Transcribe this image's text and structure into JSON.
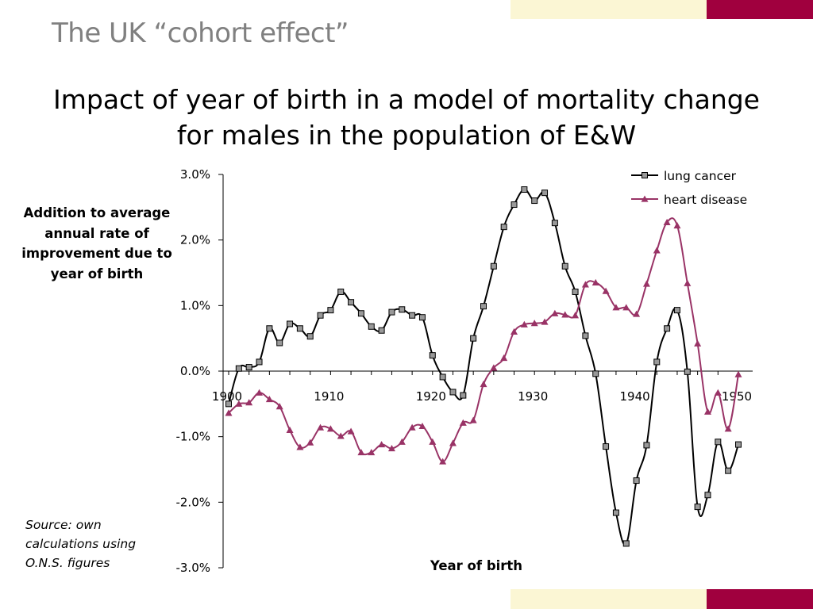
{
  "slide": {
    "title": "The UK “cohort effect”",
    "heading_line1": "Impact of year of birth in a model of mortality change",
    "heading_line2": "for males in the population of E&W",
    "source_note": "Source: own calculations using O.N.S. figures"
  },
  "colors": {
    "accent_cream": "#fbf6d4",
    "accent_maroon": "#a0003e",
    "lung_cancer": "#000000",
    "heart_disease": "#993366"
  },
  "chart_data": {
    "type": "line",
    "title": "Impact of year of birth in a model of mortality change for males in the population of E&W",
    "xlabel": "Year of birth",
    "ylabel": "Addition to average annual rate of improvement due to year of birth",
    "xlim": [
      1900,
      1950
    ],
    "ylim": [
      -3.0,
      3.0
    ],
    "x_ticks": [
      "1900",
      "1910",
      "1920",
      "1930",
      "1940",
      "1950"
    ],
    "y_ticks": [
      "3.0%",
      "2.0%",
      "1.0%",
      "0.0%",
      "-1.0%",
      "-2.0%",
      "-3.0%"
    ],
    "grid": false,
    "legend_position": "top-right",
    "x": [
      1900,
      1901,
      1902,
      1903,
      1904,
      1905,
      1906,
      1907,
      1908,
      1909,
      1910,
      1911,
      1912,
      1913,
      1914,
      1915,
      1916,
      1917,
      1918,
      1919,
      1920,
      1921,
      1922,
      1923,
      1924,
      1925,
      1926,
      1927,
      1928,
      1929,
      1930,
      1931,
      1932,
      1933,
      1934,
      1935,
      1936,
      1937,
      1938,
      1939,
      1940,
      1941,
      1942,
      1943,
      1944,
      1945,
      1946,
      1947,
      1948,
      1949,
      1950
    ],
    "series": [
      {
        "name": "lung cancer",
        "marker": "square",
        "color": "#000000",
        "values": [
          -0.5,
          0.04,
          0.06,
          0.14,
          0.65,
          0.43,
          0.72,
          0.65,
          0.53,
          0.85,
          0.93,
          1.21,
          1.05,
          0.88,
          0.68,
          0.62,
          0.9,
          0.94,
          0.85,
          0.82,
          0.24,
          -0.09,
          -0.32,
          -0.37,
          0.5,
          0.99,
          1.6,
          2.2,
          2.54,
          2.77,
          2.6,
          2.72,
          2.26,
          1.6,
          1.21,
          0.54,
          -0.04,
          -1.15,
          -2.16,
          -2.63,
          -1.67,
          -1.13,
          0.14,
          0.65,
          0.93,
          -0.01,
          -2.07,
          -1.89,
          -1.08,
          -1.52,
          -1.12
        ]
      },
      {
        "name": "heart disease",
        "marker": "triangle",
        "color": "#993366",
        "values": [
          -0.64,
          -0.5,
          -0.48,
          -0.33,
          -0.43,
          -0.54,
          -0.9,
          -1.16,
          -1.09,
          -0.86,
          -0.88,
          -0.99,
          -0.92,
          -1.24,
          -1.24,
          -1.12,
          -1.18,
          -1.08,
          -0.86,
          -0.84,
          -1.08,
          -1.38,
          -1.1,
          -0.79,
          -0.75,
          -0.2,
          0.05,
          0.2,
          0.6,
          0.71,
          0.73,
          0.75,
          0.88,
          0.86,
          0.85,
          1.32,
          1.35,
          1.22,
          0.97,
          0.97,
          0.87,
          1.33,
          1.84,
          2.27,
          2.22,
          1.34,
          0.42,
          -0.62,
          -0.33,
          -0.88,
          -0.05
        ]
      }
    ]
  }
}
